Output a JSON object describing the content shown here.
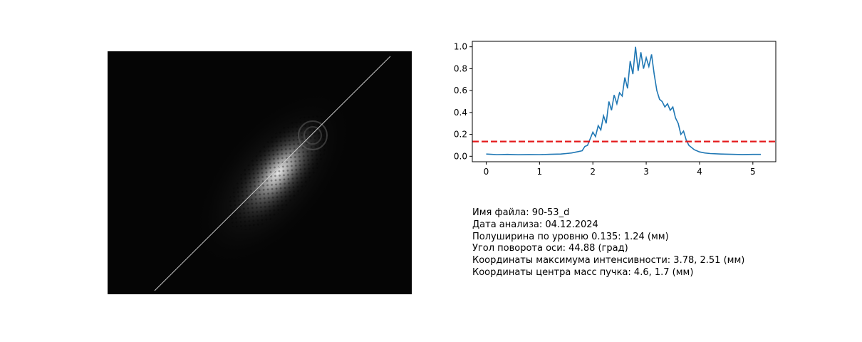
{
  "beam_image": {
    "description_icon": "beam-intensity-image",
    "background": "#050505",
    "line_color": "#c8c8c8",
    "rotation_deg": 44.88
  },
  "chart_data": {
    "type": "line",
    "title": "",
    "xlabel": "",
    "ylabel": "",
    "xlim": [
      -0.26,
      5.43
    ],
    "ylim": [
      -0.05,
      1.05
    ],
    "xticks": [
      0,
      1,
      2,
      3,
      4,
      5
    ],
    "yticks": [
      0.0,
      0.2,
      0.4,
      0.6,
      0.8,
      1.0
    ],
    "xtick_labels": [
      "0",
      "1",
      "2",
      "3",
      "4",
      "5"
    ],
    "ytick_labels": [
      "0.0",
      "0.2",
      "0.4",
      "0.6",
      "0.8",
      "1.0"
    ],
    "grid": false,
    "series": [
      {
        "color": "#1f77b4",
        "style": "solid",
        "x": [
          0.0,
          0.2,
          0.4,
          0.6,
          0.8,
          1.0,
          1.2,
          1.4,
          1.5,
          1.6,
          1.7,
          1.8,
          1.85,
          1.9,
          1.95,
          2.0,
          2.05,
          2.1,
          2.15,
          2.2,
          2.25,
          2.3,
          2.35,
          2.4,
          2.45,
          2.5,
          2.55,
          2.6,
          2.65,
          2.7,
          2.75,
          2.8,
          2.85,
          2.9,
          2.95,
          3.0,
          3.05,
          3.1,
          3.15,
          3.2,
          3.25,
          3.3,
          3.35,
          3.4,
          3.45,
          3.5,
          3.55,
          3.6,
          3.65,
          3.7,
          3.75,
          3.8,
          3.9,
          4.0,
          4.1,
          4.2,
          4.4,
          4.6,
          4.8,
          5.0,
          5.15
        ],
        "y": [
          0.02,
          0.015,
          0.017,
          0.014,
          0.016,
          0.015,
          0.018,
          0.02,
          0.025,
          0.03,
          0.04,
          0.05,
          0.09,
          0.1,
          0.16,
          0.22,
          0.18,
          0.28,
          0.24,
          0.37,
          0.3,
          0.5,
          0.42,
          0.56,
          0.48,
          0.58,
          0.55,
          0.72,
          0.62,
          0.87,
          0.75,
          1.0,
          0.78,
          0.95,
          0.8,
          0.9,
          0.82,
          0.93,
          0.75,
          0.6,
          0.52,
          0.5,
          0.45,
          0.48,
          0.42,
          0.45,
          0.35,
          0.3,
          0.2,
          0.23,
          0.15,
          0.1,
          0.06,
          0.04,
          0.03,
          0.025,
          0.02,
          0.018,
          0.016,
          0.017,
          0.017
        ]
      },
      {
        "color": "#e41a1c",
        "style": "dashed",
        "x": [
          -0.26,
          5.43
        ],
        "y": [
          0.135,
          0.135
        ]
      }
    ]
  },
  "info": {
    "file_name": "Имя файла: 90-53_d",
    "analysis_date": "Дата анализа: 04.12.2024",
    "half_width": "Полуширина по уровню 0.135: 1.24 (мм)",
    "axis_angle": "Угол поворота оси: 44.88 (град)",
    "max_coords": "Координаты максимума интенсивности: 3.78, 2.51 (мм)",
    "mass_center": "Координаты центра масс пучка: 4.6, 1.7 (мм)"
  }
}
